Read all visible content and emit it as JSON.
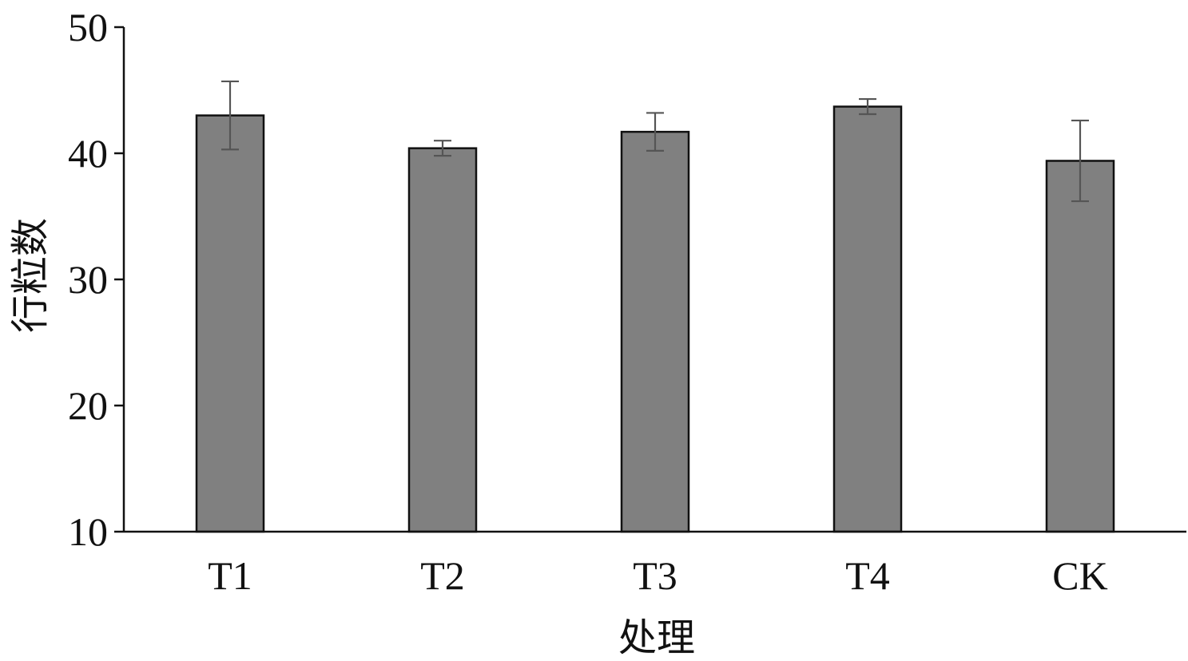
{
  "chart_data": {
    "type": "bar",
    "title": "",
    "xlabel": "处理",
    "ylabel": "行粒数",
    "categories": [
      "T1",
      "T2",
      "T3",
      "T4",
      "CK"
    ],
    "values": [
      43.0,
      40.4,
      41.7,
      43.7,
      39.4
    ],
    "error": [
      2.7,
      0.6,
      1.5,
      0.6,
      3.2
    ],
    "ylim": [
      10,
      50
    ],
    "yticks": [
      10,
      20,
      30,
      40,
      50
    ],
    "grid": false,
    "legend": "none",
    "colors": {
      "bar_fill": "#808080",
      "bar_stroke": "#111111",
      "error_bar": "#555555",
      "axis": "#111111"
    }
  }
}
